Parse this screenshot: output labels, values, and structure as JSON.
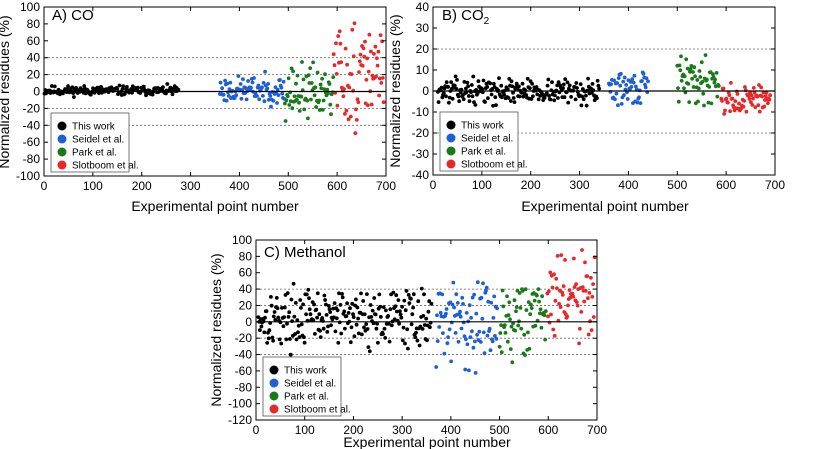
{
  "chart_data": [
    {
      "type": "scatter",
      "panel_label": "A) CO",
      "xlabel": "Experimental point number",
      "ylabel": "Normalized residues (%)",
      "xlim": [
        0,
        700
      ],
      "ylim": [
        -100,
        100
      ],
      "x_ticks": [
        0,
        100,
        200,
        300,
        400,
        500,
        600,
        700
      ],
      "x_tick_labels": [
        "0",
        "100",
        "200",
        "300",
        "400",
        "500",
        "600",
        "700"
      ],
      "y_ticks": [
        -100,
        -80,
        -60,
        -40,
        -20,
        0,
        20,
        40,
        60,
        80,
        100
      ],
      "y_tick_labels": [
        "-100",
        "-80",
        "-60",
        "-40",
        "-20",
        "0",
        "20",
        "40",
        "60",
        "80",
        "100"
      ],
      "reference_lines": {
        "solid": [
          0
        ],
        "dotted": [
          -40,
          -20,
          20,
          40
        ]
      },
      "legend_position": "bottom-left",
      "series": [
        {
          "name": "This work",
          "color": "#000000",
          "x_range": [
            1,
            275
          ],
          "base": 1,
          "spread": 5,
          "seed": 11
        },
        {
          "name": "Seidel et al.",
          "color": "#1f5fd6",
          "x_range": [
            360,
            492
          ],
          "base": 2,
          "spread": 14,
          "seed": 23
        },
        {
          "name": "Park et al.",
          "color": "#1a7a1a",
          "x_range": [
            493,
            592
          ],
          "base": 0,
          "spread": 28,
          "seed": 37
        },
        {
          "name": "Slotboom et al.",
          "color": "#e82828",
          "x_range": [
            593,
            695
          ],
          "base": 20,
          "spread": 55,
          "seed": 51
        }
      ]
    },
    {
      "type": "scatter",
      "panel_label": "B) CO",
      "panel_label_subscript": "2",
      "xlabel": "Experimental point number",
      "ylabel": "Normalized residues (%)",
      "xlim": [
        0,
        700
      ],
      "ylim": [
        -40,
        40
      ],
      "x_ticks": [
        0,
        100,
        200,
        300,
        400,
        500,
        600,
        700
      ],
      "x_tick_labels": [
        "0",
        "100",
        "200",
        "300",
        "400",
        "500",
        "600",
        "700"
      ],
      "y_ticks": [
        -40,
        -30,
        -20,
        -10,
        0,
        10,
        20,
        30,
        40
      ],
      "y_tick_labels": [
        "-40",
        "-30",
        "-20",
        "-10",
        "0",
        "10",
        "20",
        "30",
        "40"
      ],
      "reference_lines": {
        "solid": [
          0
        ],
        "dotted": [
          -20,
          20
        ]
      },
      "legend_position": "bottom-left",
      "series": [
        {
          "name": "This work",
          "color": "#000000",
          "x_range": [
            10,
            340
          ],
          "base": 0,
          "spread": 5,
          "seed": 13
        },
        {
          "name": "Seidel et al.",
          "color": "#1f5fd6",
          "x_range": [
            360,
            440
          ],
          "base": 1,
          "spread": 7,
          "seed": 29
        },
        {
          "name": "Park et al.",
          "color": "#1a7a1a",
          "x_range": [
            500,
            585
          ],
          "base": 5,
          "spread": 10,
          "seed": 41
        },
        {
          "name": "Slotboom et al.",
          "color": "#e82828",
          "x_range": [
            590,
            690
          ],
          "base": -4,
          "spread": 6,
          "seed": 57
        }
      ]
    },
    {
      "type": "scatter",
      "panel_label": "C) Methanol",
      "xlabel": "Experimental point number",
      "ylabel": "Normalized residues (%)",
      "xlim": [
        0,
        700
      ],
      "ylim": [
        -120,
        100
      ],
      "x_ticks": [
        0,
        100,
        200,
        300,
        400,
        500,
        600,
        700
      ],
      "x_tick_labels": [
        "0",
        "100",
        "200",
        "300",
        "400",
        "500",
        "600",
        "700"
      ],
      "y_ticks": [
        -120,
        -100,
        -80,
        -60,
        -40,
        -20,
        0,
        20,
        40,
        60,
        80,
        100
      ],
      "y_tick_labels": [
        "-120",
        "-100",
        "-80",
        "-60",
        "-40",
        "-20",
        "0",
        "20",
        "40",
        "60",
        "80",
        "100"
      ],
      "reference_lines": {
        "solid": [
          0
        ],
        "dotted": [
          -40,
          -20,
          20,
          40
        ]
      },
      "legend_position": "bottom-left",
      "series": [
        {
          "name": "This work",
          "color": "#000000",
          "x_range": [
            5,
            360
          ],
          "base": 5,
          "spread": 30,
          "seed": 17
        },
        {
          "name": "Seidel et al.",
          "color": "#1f5fd6",
          "x_range": [
            370,
            495
          ],
          "base": 0,
          "spread": 45,
          "seed": 31
        },
        {
          "name": "Park et al.",
          "color": "#1a7a1a",
          "x_range": [
            500,
            595
          ],
          "base": 5,
          "spread": 40,
          "seed": 43
        },
        {
          "name": "Slotboom et al.",
          "color": "#e82828",
          "x_range": [
            598,
            695
          ],
          "base": 25,
          "spread": 55,
          "seed": 61
        }
      ]
    }
  ]
}
